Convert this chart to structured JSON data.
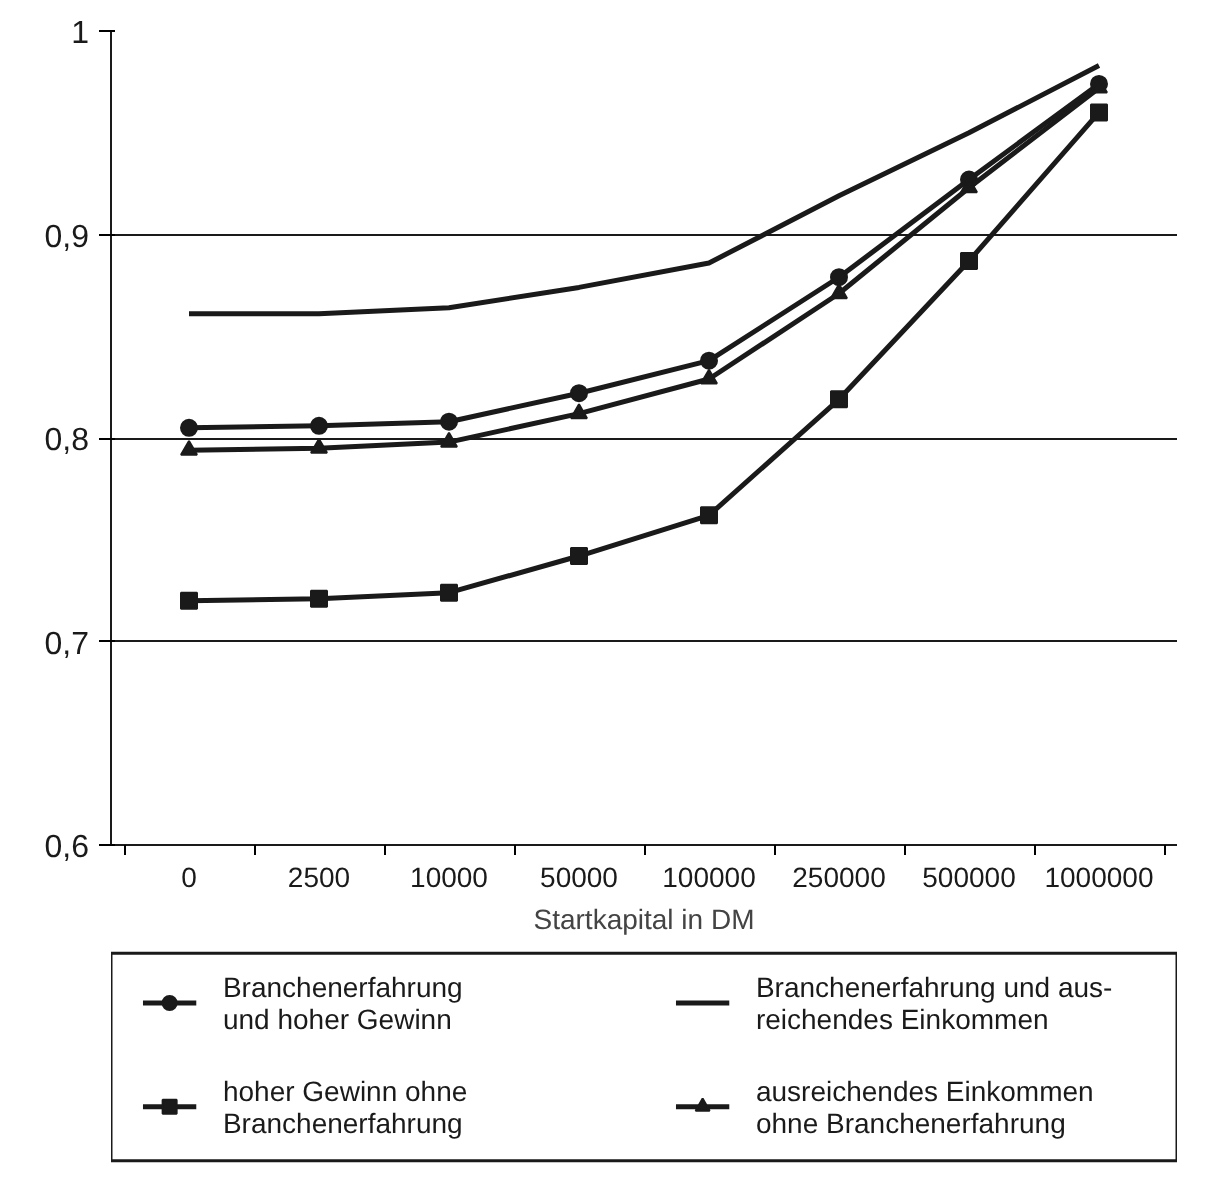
{
  "chart_data": {
    "type": "line",
    "xlabel": "Startkapital in DM",
    "categories": [
      "0",
      "2500",
      "10000",
      "50000",
      "100000",
      "250000",
      "500000",
      "1000000"
    ],
    "series": [
      {
        "name": "Branchenerfahrung\nund hoher Gewinn",
        "color": "#1a1a1a",
        "marker": "circle",
        "values": [
          0.805,
          0.806,
          0.808,
          0.822,
          0.838,
          0.879,
          0.927,
          0.974
        ]
      },
      {
        "name": "Branchenerfahrung und aus-\nreichendes Einkommen",
        "color": "#1a1a1a",
        "marker": "none",
        "values": [
          0.861,
          0.861,
          0.864,
          0.874,
          0.886,
          0.919,
          0.95,
          0.983
        ]
      },
      {
        "name": "hoher Gewinn ohne\nBranchenerfahrung",
        "color": "#1a1a1a",
        "marker": "square",
        "values": [
          0.72,
          0.721,
          0.724,
          0.742,
          0.762,
          0.819,
          0.887,
          0.96
        ]
      },
      {
        "name": "ausreichendes Einkommen\nohne Branchenerfahrung",
        "color": "#1a1a1a",
        "marker": "triangle",
        "values": [
          0.794,
          0.795,
          0.798,
          0.812,
          0.829,
          0.871,
          0.923,
          0.972
        ]
      }
    ],
    "ylim": [
      0.6,
      1
    ],
    "yticks": [
      {
        "value": 0.6,
        "label": "0,6"
      },
      {
        "value": 0.7,
        "label": "0,7"
      },
      {
        "value": 0.8,
        "label": "0,8"
      },
      {
        "value": 0.9,
        "label": "0,9"
      },
      {
        "value": 1,
        "label": "1"
      }
    ],
    "grid": "y",
    "legend": "bottom"
  }
}
